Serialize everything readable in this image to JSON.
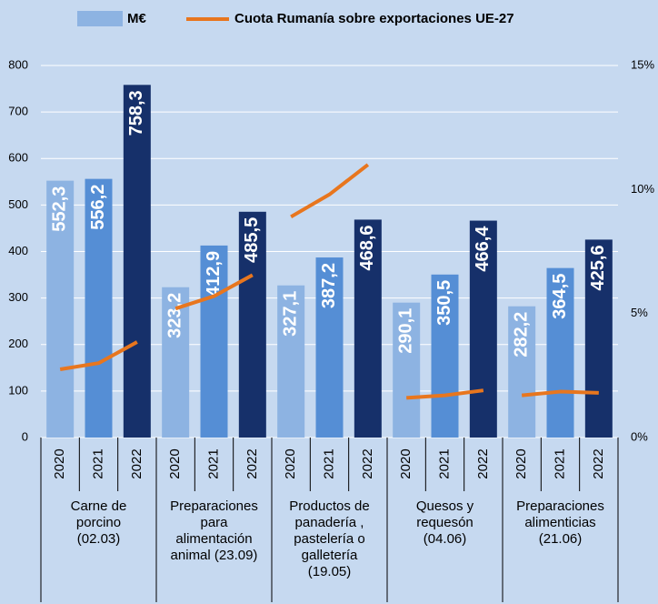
{
  "chart_data": {
    "type": "bar",
    "groups": [
      {
        "label": "Carne de\nporcino\n(02.03)",
        "categories": [
          "2020",
          "2021",
          "2022"
        ]
      },
      {
        "label": "Preparaciones\npara\nalimentación\nanimal (23.09)",
        "categories": [
          "2020",
          "2021",
          "2022"
        ]
      },
      {
        "label": "Productos de\npanadería ,\npastelería o\ngalletería\n(19.05)",
        "categories": [
          "2020",
          "2021",
          "2022"
        ]
      },
      {
        "label": "Quesos y\nrequesón\n(04.06)",
        "categories": [
          "2020",
          "2021",
          "2022"
        ]
      },
      {
        "label": "Preparaciones\nalimenticias\n(21.06)",
        "categories": [
          "2020",
          "2021",
          "2022"
        ]
      }
    ],
    "series": [
      {
        "name": "M€",
        "type": "bar",
        "color": "#8db3e2",
        "colors": [
          "#8db3e2",
          "#558ed5",
          "#16306a"
        ],
        "values": [
          [
            552.3,
            556.2,
            758.3
          ],
          [
            323.2,
            412.9,
            485.5
          ],
          [
            327.1,
            387.2,
            468.6
          ],
          [
            290.1,
            350.5,
            466.4
          ],
          [
            282.2,
            364.5,
            425.6
          ]
        ],
        "value_labels": [
          [
            "552,3",
            "556,2",
            "758,3"
          ],
          [
            "323,2",
            "412,9",
            "485,5"
          ],
          [
            "327,1",
            "387,2",
            "468,6"
          ],
          [
            "290,1",
            "350,5",
            "466,4"
          ],
          [
            "282,2",
            "364,5",
            "425,6"
          ]
        ]
      },
      {
        "name": "Cuota Rumanía sobre exportaciones UE-27",
        "type": "line",
        "axis": "y2",
        "color": "#e8761e",
        "values": [
          [
            2.75,
            3.0,
            3.85
          ],
          [
            5.2,
            5.7,
            6.55
          ],
          [
            8.9,
            9.8,
            11.0
          ],
          [
            1.6,
            1.7,
            1.9
          ],
          [
            1.7,
            1.85,
            1.8
          ]
        ]
      }
    ],
    "ylim": [
      0,
      800
    ],
    "yticks": [
      0,
      100,
      200,
      300,
      400,
      500,
      600,
      700,
      800
    ],
    "y2lim": [
      0,
      15
    ],
    "y2ticks": [
      {
        "value": 0,
        "label": "0%"
      },
      {
        "value": 5,
        "label": "5%"
      },
      {
        "value": 10,
        "label": "10%"
      },
      {
        "value": 15,
        "label": "15%"
      }
    ],
    "grid": true
  }
}
